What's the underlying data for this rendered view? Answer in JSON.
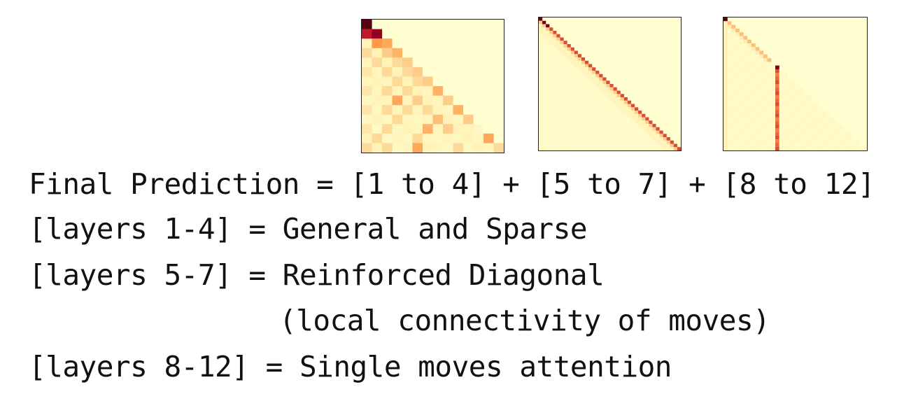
{
  "heatmaps": [
    {
      "id": "layers-1-4",
      "grid": 14,
      "cells": [
        [
          0,
          0,
          1.0
        ],
        [
          1,
          0,
          0.8
        ],
        [
          1,
          1,
          0.9
        ],
        [
          2,
          1,
          0.55
        ],
        [
          2,
          2,
          0.5
        ],
        [
          3,
          0,
          0.3
        ],
        [
          3,
          2,
          0.35
        ],
        [
          3,
          3,
          0.45
        ],
        [
          4,
          1,
          0.3
        ],
        [
          4,
          3,
          0.3
        ],
        [
          4,
          4,
          0.35
        ],
        [
          5,
          0,
          0.25
        ],
        [
          5,
          2,
          0.3
        ],
        [
          5,
          4,
          0.3
        ],
        [
          5,
          5,
          0.35
        ],
        [
          6,
          1,
          0.2
        ],
        [
          6,
          3,
          0.3
        ],
        [
          6,
          5,
          0.3
        ],
        [
          6,
          6,
          0.35
        ],
        [
          7,
          0,
          0.25
        ],
        [
          7,
          2,
          0.3
        ],
        [
          7,
          4,
          0.3
        ],
        [
          7,
          7,
          0.45
        ],
        [
          8,
          1,
          0.2
        ],
        [
          8,
          3,
          0.5
        ],
        [
          8,
          5,
          0.35
        ],
        [
          8,
          8,
          0.35
        ],
        [
          9,
          0,
          0.25
        ],
        [
          9,
          2,
          0.3
        ],
        [
          9,
          4,
          0.3
        ],
        [
          9,
          6,
          0.3
        ],
        [
          9,
          9,
          0.45
        ],
        [
          10,
          1,
          0.2
        ],
        [
          10,
          3,
          0.3
        ],
        [
          10,
          7,
          0.4
        ],
        [
          10,
          10,
          0.35
        ],
        [
          11,
          0,
          0.25
        ],
        [
          11,
          2,
          0.3
        ],
        [
          11,
          6,
          0.45
        ],
        [
          11,
          8,
          0.35
        ],
        [
          12,
          1,
          0.3
        ],
        [
          12,
          5,
          0.3
        ],
        [
          12,
          12,
          0.5
        ],
        [
          13,
          0,
          0.3
        ],
        [
          13,
          2,
          0.3
        ],
        [
          13,
          5,
          0.5
        ],
        [
          13,
          9,
          0.3
        ],
        [
          13,
          13,
          0.3
        ]
      ]
    },
    {
      "id": "layers-5-7",
      "grid": 40,
      "kind": "diagonal"
    },
    {
      "id": "layers-8-12",
      "grid": 36,
      "kind": "column",
      "column": 13,
      "column_start": 13
    }
  ],
  "text": {
    "line1": "Final Prediction = [1 to 4] + [5 to 7] + [8 to 12]",
    "line2": "[layers 1-4] = General and Sparse",
    "line3": "[layers 5-7] = Reinforced Diagonal",
    "line4": "(local connectivity of moves)",
    "line5": "[layers 8-12] = Single moves attention"
  },
  "colors": {
    "background": "#ffffd1",
    "low": "#fff3b8",
    "mid": "#fd9a4a",
    "high": "#b10026",
    "max": "#5a0015"
  }
}
